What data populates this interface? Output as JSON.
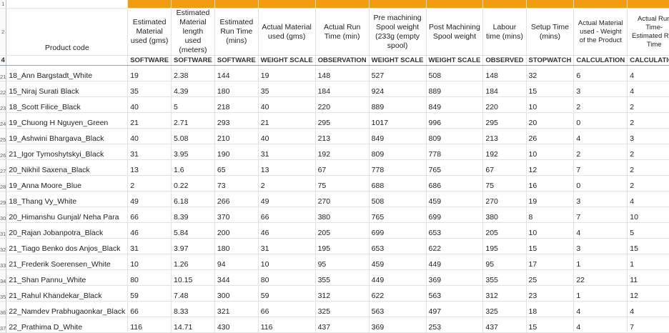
{
  "row_numbers": [
    "1",
    "2",
    "4",
    "21",
    "22",
    "23",
    "24",
    "25",
    "26",
    "27",
    "28",
    "29",
    "30",
    "31",
    "32",
    "33",
    "34",
    "35",
    "36",
    "37"
  ],
  "header": {
    "product_code": "Product code",
    "columns": [
      "Estimated Material used (gms)",
      "Estimated Material length used (meters)",
      "Estimated Run Time (mins)",
      "Actual Material used (gms)",
      "Actual Run Time (min)",
      "Pre machining Spool weight (233g (empty spool)",
      "Post Machining Spool weight",
      "Labour time (mins)",
      "Setup Time (mins)",
      "Actual Material used - Weight of the Product",
      "Actual Run Time- Estimated Run Time"
    ],
    "sources": [
      "SOFTWARE",
      "SOFTWARE",
      "SOFTWARE",
      "WEIGHT SCALE",
      "OBSERVATION",
      "WEIGHT SCALE",
      "WEIGHT SCALE",
      "OBSERVED",
      "STOPWATCH",
      "CALCULATION",
      "CALCULATION"
    ]
  },
  "rows": [
    [
      "18_Ann Bargstadt_White",
      "19",
      "2.38",
      "144",
      "19",
      "148",
      "527",
      "508",
      "148",
      "32",
      "6",
      "4"
    ],
    [
      "15_Niraj Surati Black",
      "35",
      "4.39",
      "180",
      "35",
      "184",
      "924",
      "889",
      "184",
      "15",
      "3",
      "4"
    ],
    [
      "18_Scott Filice_Black",
      "40",
      "5",
      "218",
      "40",
      "220",
      "889",
      "849",
      "220",
      "10",
      "2",
      "2"
    ],
    [
      "19_Chuong H Nguyen_Green",
      "21",
      "2.71",
      "293",
      "21",
      "295",
      "1017",
      "996",
      "295",
      "20",
      "0",
      "2"
    ],
    [
      "19_Ashwini Bhargava_Black",
      "40",
      "5.08",
      "210",
      "40",
      "213",
      "849",
      "809",
      "213",
      "26",
      "4",
      "3"
    ],
    [
      "21_Igor Tymoshytskyi_Black",
      "31",
      "3.95",
      "190",
      "31",
      "192",
      "809",
      "778",
      "192",
      "10",
      "2",
      "2"
    ],
    [
      "20_Nikhil Saxena_Black",
      "13",
      "1.6",
      "65",
      "13",
      "67",
      "778",
      "765",
      "67",
      "12",
      "7",
      "2"
    ],
    [
      "19_Anna Moore_Blue",
      "2",
      "0.22",
      "73",
      "2",
      "75",
      "688",
      "686",
      "75",
      "16",
      "0",
      "2"
    ],
    [
      "18_Thang Vy_White",
      "49",
      "6.18",
      "266",
      "49",
      "270",
      "508",
      "459",
      "270",
      "19",
      "3",
      "4"
    ],
    [
      "20_Himanshu Gunjal/ Neha Para",
      "66",
      "8.39",
      "370",
      "66",
      "380",
      "765",
      "699",
      "380",
      "8",
      "7",
      "10"
    ],
    [
      "20_Rajan Jobanpotra_Black",
      "46",
      "5.84",
      "200",
      "46",
      "205",
      "699",
      "653",
      "205",
      "10",
      "4",
      "5"
    ],
    [
      "21_Tiago Benko dos Anjos_Black",
      "31",
      "3.97",
      "180",
      "31",
      "195",
      "653",
      "622",
      "195",
      "15",
      "3",
      "15"
    ],
    [
      "21_Frederik Soerensen_White",
      "10",
      "1.26",
      "94",
      "10",
      "95",
      "459",
      "449",
      "95",
      "17",
      "1",
      "1"
    ],
    [
      "21_Shan Pannu_White",
      "80",
      "10.15",
      "344",
      "80",
      "355",
      "449",
      "369",
      "355",
      "25",
      "22",
      "11"
    ],
    [
      "21_Rahul Khandekar_Black",
      "59",
      "7.48",
      "300",
      "59",
      "312",
      "622",
      "563",
      "312",
      "23",
      "1",
      "12"
    ],
    [
      "22_Namdev Prabhugaonkar_Black",
      "66",
      "8.33",
      "321",
      "66",
      "325",
      "563",
      "497",
      "325",
      "18",
      "4",
      "4"
    ],
    [
      "22_Prathima D_White",
      "116",
      "14.71",
      "430",
      "116",
      "437",
      "369",
      "253",
      "437",
      "15",
      "4",
      "7"
    ]
  ]
}
